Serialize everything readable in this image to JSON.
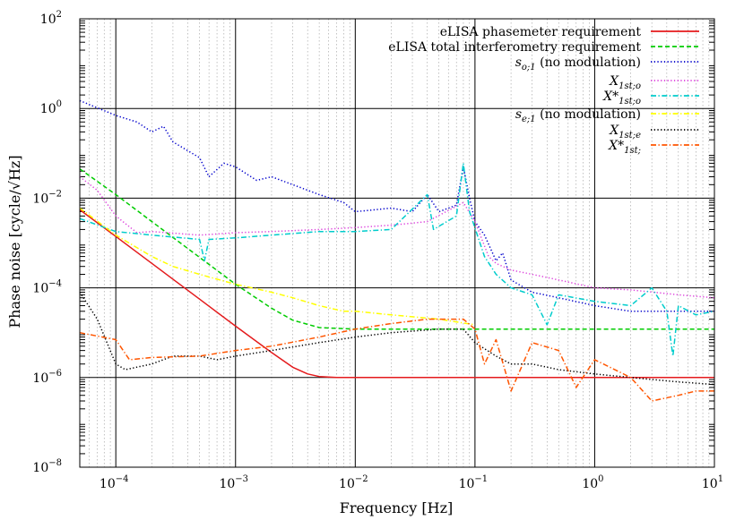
{
  "chart_data": {
    "type": "line",
    "title": "",
    "xlabel": "Frequency [Hz]",
    "ylabel": "Phase noise [cycle/√Hz]",
    "xscale": "log",
    "yscale": "log",
    "xlim": [
      5e-05,
      10
    ],
    "ylim": [
      1e-08,
      100
    ],
    "grid": true,
    "legend_position": "top-right",
    "x_ticks": [
      {
        "value": 0.0001,
        "base": "10",
        "exp": "−4"
      },
      {
        "value": 0.001,
        "base": "10",
        "exp": "−3"
      },
      {
        "value": 0.01,
        "base": "10",
        "exp": "−2"
      },
      {
        "value": 0.1,
        "base": "10",
        "exp": "−1"
      },
      {
        "value": 1,
        "base": "10",
        "exp": "0"
      },
      {
        "value": 10,
        "base": "10",
        "exp": "1"
      }
    ],
    "y_ticks": [
      {
        "value": 1e-08,
        "base": "10",
        "exp": "−8"
      },
      {
        "value": 1e-06,
        "base": "10",
        "exp": "−6"
      },
      {
        "value": 0.0001,
        "base": "10",
        "exp": "−4"
      },
      {
        "value": 0.01,
        "base": "10",
        "exp": "−2"
      },
      {
        "value": 1,
        "base": "10",
        "exp": "0"
      },
      {
        "value": 100,
        "base": "10",
        "exp": "2"
      }
    ],
    "series": [
      {
        "name": "eLISA phasemeter requirement",
        "color": "#e41a1c",
        "dash": "solid",
        "points": [
          [
            5e-05,
            0.0055
          ],
          [
            0.0001,
            0.0014
          ],
          [
            0.0002,
            0.00035
          ],
          [
            0.0005,
            5.6e-05
          ],
          [
            0.001,
            1.4e-05
          ],
          [
            0.002,
            3.6e-06
          ],
          [
            0.003,
            1.7e-06
          ],
          [
            0.004,
            1.2e-06
          ],
          [
            0.005,
            1.05e-06
          ],
          [
            0.007,
            1e-06
          ],
          [
            0.01,
            1e-06
          ],
          [
            0.1,
            1e-06
          ],
          [
            1,
            1e-06
          ],
          [
            10,
            1e-06
          ]
        ]
      },
      {
        "name": "eLISA total interferometry requirement",
        "color": "#00cc00",
        "dash": "dashed",
        "points": [
          [
            5e-05,
            0.045
          ],
          [
            0.0001,
            0.012
          ],
          [
            0.0002,
            0.003
          ],
          [
            0.0005,
            0.00048
          ],
          [
            0.001,
            0.00012
          ],
          [
            0.002,
            3.5e-05
          ],
          [
            0.003,
            1.9e-05
          ],
          [
            0.005,
            1.3e-05
          ],
          [
            0.01,
            1.2e-05
          ],
          [
            0.1,
            1.2e-05
          ],
          [
            1,
            1.2e-05
          ],
          [
            10,
            1.2e-05
          ]
        ]
      },
      {
        "name": "s_{o;1} (no modulation)",
        "color": "#0000cc",
        "dash": "dotted",
        "points": [
          [
            5e-05,
            1.5
          ],
          [
            0.0001,
            0.7
          ],
          [
            0.00015,
            0.5
          ],
          [
            0.0002,
            0.3
          ],
          [
            0.00025,
            0.4
          ],
          [
            0.0003,
            0.18
          ],
          [
            0.0005,
            0.08
          ],
          [
            0.0006,
            0.03
          ],
          [
            0.0008,
            0.06
          ],
          [
            0.001,
            0.05
          ],
          [
            0.0015,
            0.025
          ],
          [
            0.002,
            0.03
          ],
          [
            0.003,
            0.02
          ],
          [
            0.005,
            0.012
          ],
          [
            0.008,
            0.008
          ],
          [
            0.01,
            0.005
          ],
          [
            0.02,
            0.006
          ],
          [
            0.03,
            0.005
          ],
          [
            0.04,
            0.012
          ],
          [
            0.05,
            0.005
          ],
          [
            0.07,
            0.007
          ],
          [
            0.08,
            0.05
          ],
          [
            0.09,
            0.01
          ],
          [
            0.1,
            0.003
          ],
          [
            0.12,
            0.0015
          ],
          [
            0.15,
            0.0004
          ],
          [
            0.17,
            0.0006
          ],
          [
            0.2,
            0.00015
          ],
          [
            0.3,
            8e-05
          ],
          [
            0.5,
            6e-05
          ],
          [
            1,
            4e-05
          ],
          [
            2,
            3e-05
          ],
          [
            5,
            3e-05
          ],
          [
            10,
            3e-05
          ]
        ]
      },
      {
        "name": "X_{1st;o}",
        "color": "#dd44dd",
        "dash": "dotted",
        "points": [
          [
            5e-05,
            0.03
          ],
          [
            7e-05,
            0.015
          ],
          [
            0.0001,
            0.004
          ],
          [
            0.00015,
            0.0017
          ],
          [
            0.0002,
            0.0018
          ],
          [
            0.0005,
            0.0015
          ],
          [
            0.001,
            0.0017
          ],
          [
            0.002,
            0.0018
          ],
          [
            0.005,
            0.002
          ],
          [
            0.01,
            0.0022
          ],
          [
            0.02,
            0.0025
          ],
          [
            0.04,
            0.003
          ],
          [
            0.08,
            0.008
          ],
          [
            0.1,
            0.003
          ],
          [
            0.13,
            0.0005
          ],
          [
            0.15,
            0.00035
          ],
          [
            0.2,
            0.00025
          ],
          [
            0.3,
            0.0002
          ],
          [
            0.5,
            0.00015
          ],
          [
            1,
            0.0001
          ],
          [
            2,
            9e-05
          ],
          [
            5,
            7e-05
          ],
          [
            10,
            6e-05
          ]
        ]
      },
      {
        "name": "X*_{1st;o}",
        "color": "#00cccc",
        "dash": "dashdot",
        "points": [
          [
            5e-05,
            0.0035
          ],
          [
            0.0001,
            0.0018
          ],
          [
            0.0002,
            0.0015
          ],
          [
            0.0005,
            0.0012
          ],
          [
            0.00055,
            0.0004
          ],
          [
            0.0006,
            0.0012
          ],
          [
            0.001,
            0.0013
          ],
          [
            0.002,
            0.0015
          ],
          [
            0.005,
            0.0018
          ],
          [
            0.01,
            0.0018
          ],
          [
            0.02,
            0.002
          ],
          [
            0.04,
            0.012
          ],
          [
            0.045,
            0.002
          ],
          [
            0.07,
            0.004
          ],
          [
            0.08,
            0.06
          ],
          [
            0.09,
            0.005
          ],
          [
            0.12,
            0.0005
          ],
          [
            0.15,
            0.0002
          ],
          [
            0.2,
            0.0001
          ],
          [
            0.3,
            7e-05
          ],
          [
            0.4,
            1.5e-05
          ],
          [
            0.5,
            7e-05
          ],
          [
            1,
            5e-05
          ],
          [
            2,
            4e-05
          ],
          [
            3,
            0.0001
          ],
          [
            4,
            3e-05
          ],
          [
            4.5,
            3e-06
          ],
          [
            5,
            4e-05
          ],
          [
            7,
            2.5e-05
          ],
          [
            10,
            3e-05
          ]
        ]
      },
      {
        "name": "s_{e;1} (no modulation)",
        "color": "#ffff00",
        "dash": "dashdot",
        "points": [
          [
            5e-05,
            0.006
          ],
          [
            0.0001,
            0.0015
          ],
          [
            0.0002,
            0.0005
          ],
          [
            0.0003,
            0.0003
          ],
          [
            0.0005,
            0.0002
          ],
          [
            0.001,
            0.00012
          ],
          [
            0.002,
            8e-05
          ],
          [
            0.003,
            6e-05
          ],
          [
            0.005,
            4e-05
          ],
          [
            0.008,
            3e-05
          ],
          [
            0.01,
            3e-05
          ],
          [
            0.02,
            2.5e-05
          ],
          [
            0.05,
            2e-05
          ],
          [
            0.1,
            1.5e-05
          ]
        ]
      },
      {
        "name": "X_{1st;e}",
        "color": "#000000",
        "dash": "dotted",
        "points": [
          [
            5e-05,
            8e-05
          ],
          [
            7e-05,
            2e-05
          ],
          [
            0.0001,
            2e-06
          ],
          [
            0.00012,
            1.5e-06
          ],
          [
            0.0002,
            2e-06
          ],
          [
            0.0003,
            3e-06
          ],
          [
            0.0005,
            3e-06
          ],
          [
            0.0007,
            2.5e-06
          ],
          [
            0.001,
            3e-06
          ],
          [
            0.002,
            4e-06
          ],
          [
            0.005,
            6e-06
          ],
          [
            0.01,
            8e-06
          ],
          [
            0.02,
            1e-05
          ],
          [
            0.05,
            1.2e-05
          ],
          [
            0.08,
            1.2e-05
          ],
          [
            0.1,
            6e-06
          ],
          [
            0.15,
            3e-06
          ],
          [
            0.2,
            2e-06
          ],
          [
            0.3,
            2e-06
          ],
          [
            0.5,
            1.5e-06
          ],
          [
            1,
            1.2e-06
          ],
          [
            2,
            1e-06
          ],
          [
            5,
            8e-07
          ],
          [
            10,
            7e-07
          ]
        ]
      },
      {
        "name": "X*_{1st;}",
        "color": "#ff5500",
        "dash": "dashdot",
        "points": [
          [
            5e-05,
            1e-05
          ],
          [
            0.0001,
            7e-06
          ],
          [
            0.00013,
            2.5e-06
          ],
          [
            0.0002,
            2.8e-06
          ],
          [
            0.0005,
            3e-06
          ],
          [
            0.001,
            4e-06
          ],
          [
            0.002,
            5e-06
          ],
          [
            0.005,
            8e-06
          ],
          [
            0.01,
            1.2e-05
          ],
          [
            0.02,
            1.6e-05
          ],
          [
            0.04,
            2e-05
          ],
          [
            0.08,
            2e-05
          ],
          [
            0.1,
            1.2e-05
          ],
          [
            0.12,
            2e-06
          ],
          [
            0.15,
            7e-06
          ],
          [
            0.2,
            5e-07
          ],
          [
            0.3,
            6e-06
          ],
          [
            0.5,
            4e-06
          ],
          [
            0.7,
            6e-07
          ],
          [
            1,
            2.5e-06
          ],
          [
            2,
            1e-06
          ],
          [
            3,
            3e-07
          ],
          [
            5,
            4e-07
          ],
          [
            7,
            5e-07
          ],
          [
            10,
            5e-07
          ]
        ]
      }
    ]
  },
  "legend": {
    "items": [
      {
        "text": "eLISA phasemeter requirement"
      },
      {
        "text": "eLISA total interferometry requirement"
      },
      {
        "sym": "s",
        "sub": "o;1",
        "tail": " (no modulation)"
      },
      {
        "sym": "X",
        "sub": "1st;o"
      },
      {
        "sym": "X*",
        "sub": "1st;o"
      },
      {
        "sym": "s",
        "sub": "e;1",
        "tail": " (no modulation)"
      },
      {
        "sym": "X",
        "sub": "1st;e"
      },
      {
        "sym": "X*",
        "sub": "1st;"
      }
    ]
  }
}
